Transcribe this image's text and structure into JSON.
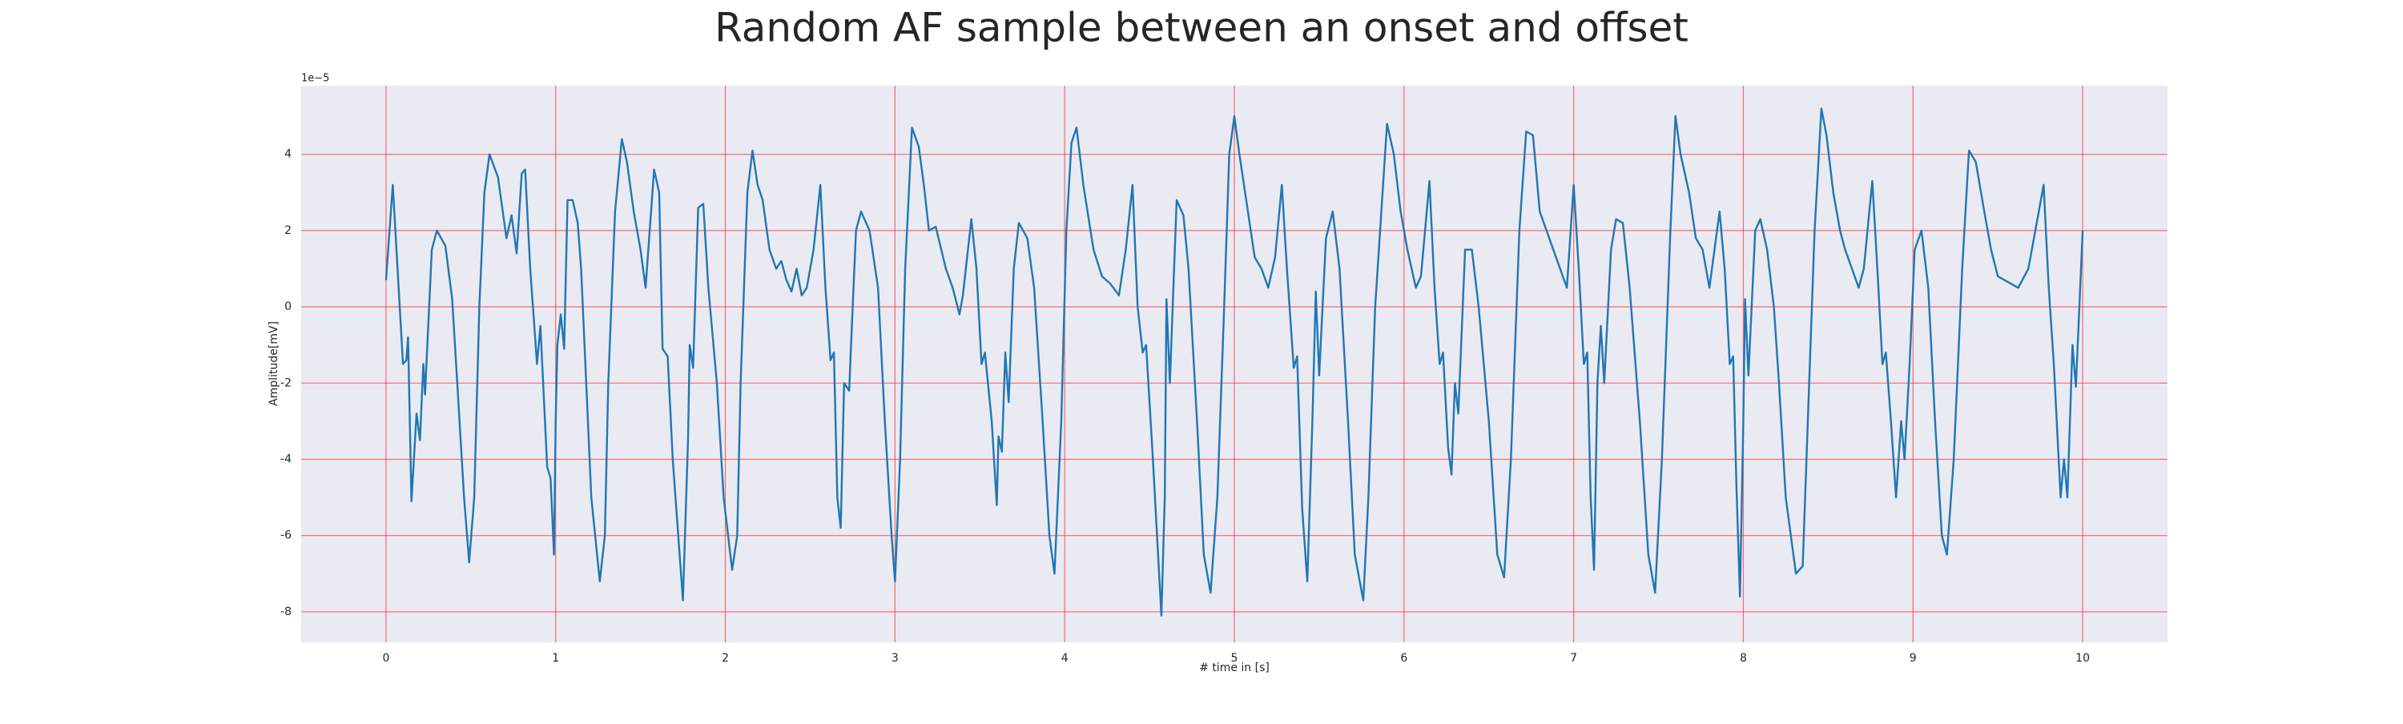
{
  "chart_data": {
    "type": "line",
    "title": "Random AF sample between an onset and offset",
    "xlabel": "# time in [s]",
    "ylabel": "Amplitude[mV]",
    "y_offset_label": "1e−5",
    "color": "#1f77b4",
    "grid": true,
    "grid_color": "#ff0000",
    "background": "#eaeaf2",
    "xlim": [
      -0.5,
      10.5
    ],
    "ylim": [
      -8.8,
      5.8
    ],
    "xticks": [
      0,
      1,
      2,
      3,
      4,
      5,
      6,
      7,
      8,
      9,
      10
    ],
    "yticks": [
      -8,
      -6,
      -4,
      -2,
      0,
      2,
      4
    ],
    "x": [
      0,
      0.04,
      0.1,
      0.12,
      0.13,
      0.15,
      0.18,
      0.2,
      0.22,
      0.23,
      0.27,
      0.3,
      0.35,
      0.39,
      0.42,
      0.46,
      0.49,
      0.52,
      0.55,
      0.58,
      0.61,
      0.66,
      0.71,
      0.74,
      0.77,
      0.8,
      0.82,
      0.85,
      0.89,
      0.91,
      0.95,
      0.97,
      0.99,
      1.0,
      1.01,
      1.03,
      1.05,
      1.07,
      1.1,
      1.13,
      1.15,
      1.18,
      1.21,
      1.26,
      1.29,
      1.31,
      1.35,
      1.39,
      1.42,
      1.46,
      1.5,
      1.53,
      1.58,
      1.61,
      1.63,
      1.66,
      1.69,
      1.75,
      1.78,
      1.79,
      1.81,
      1.84,
      1.87,
      1.9,
      1.95,
      1.99,
      2.04,
      2.07,
      2.09,
      2.13,
      2.16,
      2.19,
      2.22,
      2.26,
      2.3,
      2.33,
      2.36,
      2.39,
      2.42,
      2.45,
      2.48,
      2.52,
      2.56,
      2.59,
      2.62,
      2.64,
      2.66,
      2.68,
      2.7,
      2.73,
      2.74,
      2.77,
      2.8,
      2.85,
      2.9,
      2.94,
      2.98,
      3.0,
      3.03,
      3.06,
      3.1,
      3.14,
      3.17,
      3.2,
      3.24,
      3.3,
      3.34,
      3.38,
      3.4,
      3.45,
      3.48,
      3.51,
      3.53,
      3.57,
      3.6,
      3.61,
      3.63,
      3.65,
      3.67,
      3.7,
      3.73,
      3.78,
      3.82,
      3.87,
      3.91,
      3.94,
      3.98,
      4.01,
      4.04,
      4.07,
      4.11,
      4.17,
      4.22,
      4.27,
      4.32,
      4.36,
      4.4,
      4.43,
      4.46,
      4.48,
      4.52,
      4.57,
      4.59,
      4.6,
      4.62,
      4.66,
      4.7,
      4.73,
      4.78,
      4.82,
      4.86,
      4.9,
      4.94,
      4.97,
      5.0,
      5.03,
      5.07,
      5.12,
      5.16,
      5.2,
      5.24,
      5.28,
      5.31,
      5.35,
      5.37,
      5.4,
      5.43,
      5.46,
      5.48,
      5.5,
      5.54,
      5.58,
      5.62,
      5.67,
      5.71,
      5.76,
      5.79,
      5.83,
      5.9,
      5.94,
      5.98,
      6.02,
      6.07,
      6.1,
      6.15,
      6.18,
      6.21,
      6.23,
      6.26,
      6.28,
      6.3,
      6.32,
      6.36,
      6.4,
      6.44,
      6.5,
      6.55,
      6.59,
      6.63,
      6.68,
      6.72,
      6.76,
      6.8,
      6.84,
      6.88,
      6.92,
      6.96,
      7.0,
      7.03,
      7.06,
      7.08,
      7.1,
      7.12,
      7.14,
      7.16,
      7.18,
      7.22,
      7.25,
      7.29,
      7.33,
      7.39,
      7.44,
      7.48,
      7.52,
      7.57,
      7.6,
      7.63,
      7.68,
      7.72,
      7.76,
      7.8,
      7.86,
      7.89,
      7.92,
      7.94,
      7.96,
      7.98,
      8.0,
      8.01,
      8.03,
      8.07,
      8.1,
      8.14,
      8.18,
      8.21,
      8.25,
      8.31,
      8.35,
      8.38,
      8.42,
      8.46,
      8.49,
      8.53,
      8.57,
      8.6,
      8.64,
      8.68,
      8.71,
      8.76,
      8.79,
      8.82,
      8.84,
      8.87,
      8.9,
      8.93,
      8.95,
      8.98,
      9.01,
      9.05,
      9.09,
      9.13,
      9.17,
      9.2,
      9.24,
      9.29,
      9.33,
      9.37,
      9.42,
      9.46,
      9.5,
      9.62,
      9.68,
      9.77,
      9.8,
      9.83,
      9.87,
      9.89,
      9.91,
      9.94,
      9.96,
      10.0
    ],
    "values": [
      0.7,
      3.2,
      -1.5,
      -1.4,
      -0.8,
      -5.1,
      -2.8,
      -3.5,
      -1.5,
      -2.3,
      1.5,
      2.0,
      1.6,
      0.2,
      -2,
      -5,
      -6.7,
      -5,
      0,
      3,
      4.0,
      3.4,
      1.8,
      2.4,
      1.4,
      3.5,
      3.6,
      1,
      -1.5,
      -0.5,
      -4.2,
      -4.5,
      -6.5,
      -3,
      -1,
      -0.2,
      -1.1,
      2.8,
      2.8,
      2.2,
      1,
      -2,
      -5,
      -7.2,
      -6,
      -2,
      2.5,
      4.4,
      3.8,
      2.5,
      1.5,
      0.5,
      3.6,
      3.0,
      -1.1,
      -1.3,
      -4,
      -7.7,
      -3.5,
      -1,
      -1.6,
      2.6,
      2.7,
      0.5,
      -2,
      -5,
      -6.9,
      -6,
      -2,
      3,
      4.1,
      3.2,
      2.8,
      1.5,
      1.0,
      1.2,
      0.7,
      0.4,
      1.0,
      0.3,
      0.5,
      1.5,
      3.2,
      0.5,
      -1.4,
      -1.2,
      -5,
      -5.8,
      -2,
      -2.2,
      -1.1,
      2,
      2.5,
      2.0,
      0.5,
      -3,
      -6,
      -7.2,
      -4,
      1,
      4.7,
      4.2,
      3.2,
      2.0,
      2.1,
      1.0,
      0.5,
      -0.2,
      0.3,
      2.3,
      1,
      -1.5,
      -1.2,
      -3,
      -5.2,
      -3.4,
      -3.8,
      -1.2,
      -2.5,
      1,
      2.2,
      1.8,
      0.5,
      -3,
      -6,
      -7,
      -3,
      2,
      4.3,
      4.7,
      3.2,
      1.5,
      0.8,
      0.6,
      0.3,
      1.5,
      3.2,
      0,
      -1.2,
      -1,
      -4,
      -8.1,
      -5,
      0.2,
      -2,
      2.8,
      2.4,
      1,
      -3,
      -6.5,
      -7.5,
      -5,
      0,
      4,
      5.0,
      4,
      2.8,
      1.3,
      1.0,
      0.5,
      1.3,
      3.2,
      1,
      -1.6,
      -1.3,
      -5.3,
      -7.2,
      -3,
      0.4,
      -1.8,
      1.8,
      2.5,
      1,
      -3,
      -6.5,
      -7.7,
      -5,
      0,
      4.8,
      4,
      2.5,
      1.5,
      0.5,
      0.8,
      3.3,
      0.5,
      -1.5,
      -1.2,
      -3.7,
      -4.4,
      -2,
      -2.8,
      1.5,
      1.5,
      0,
      -3,
      -6.5,
      -7.1,
      -4,
      2,
      4.6,
      4.5,
      2.5,
      2,
      1.5,
      1.0,
      0.5,
      3.2,
      1,
      -1.5,
      -1.2,
      -5,
      -6.9,
      -2,
      -0.5,
      -2,
      1.5,
      2.3,
      2.2,
      0.5,
      -3,
      -6.5,
      -7.5,
      -4,
      2,
      5.0,
      4,
      3,
      1.8,
      1.5,
      0.5,
      2.5,
      1,
      -1.5,
      -1.3,
      -4.8,
      -7.6,
      -3,
      0.2,
      -1.8,
      2,
      2.3,
      1.5,
      0,
      -2,
      -5,
      -7,
      -6.8,
      -3,
      2,
      5.2,
      4.5,
      3,
      2,
      1.5,
      1,
      0.5,
      1,
      3.3,
      1,
      -1.5,
      -1.2,
      -3,
      -5,
      -3,
      -4,
      -1.5,
      1.5,
      2,
      0.5,
      -3,
      -6,
      -6.5,
      -4,
      1,
      4.1,
      3.8,
      2.5,
      1.5,
      0.8,
      0.5,
      1,
      3.2,
      0.5,
      -1.5,
      -5,
      -4,
      -5,
      -1,
      -2.1,
      2
    ]
  }
}
